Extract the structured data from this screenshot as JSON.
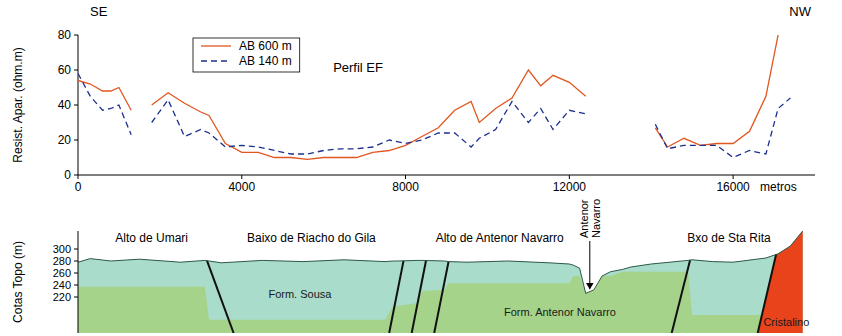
{
  "chart_data": [
    {
      "type": "line",
      "title": "Perfil EF",
      "left_label": "SE",
      "right_label": "NW",
      "ylabel": "Resist. Apar. (ohm.m)",
      "xlabel": "metros",
      "xlim": [
        0,
        18000
      ],
      "xticks": [
        0,
        4000,
        8000,
        12000,
        16000
      ],
      "ylim": [
        0,
        80
      ],
      "yticks": [
        0,
        20,
        40,
        60,
        80
      ],
      "legend": "upper left",
      "grid": false,
      "x": [
        0,
        300,
        600,
        800,
        1000,
        1300,
        1550,
        1800,
        2200,
        2600,
        3000,
        3200,
        3600,
        4000,
        4400,
        4800,
        5200,
        5600,
        6000,
        6400,
        6800,
        7200,
        7600,
        8000,
        8400,
        8800,
        9200,
        9600,
        9800,
        10200,
        10600,
        11000,
        11300,
        11600,
        12000,
        12400,
        13200,
        14100,
        14400,
        14800,
        15200,
        15600,
        16000,
        16400,
        16800,
        17100,
        17400
      ],
      "series": [
        {
          "name": "AB 600 m",
          "color": "#e2561f",
          "line_style": "solid",
          "values": [
            54,
            52,
            48,
            48,
            50,
            37,
            null,
            40,
            47,
            41,
            36,
            34,
            18,
            13,
            13,
            10,
            10,
            9,
            10,
            10,
            10,
            13,
            14,
            17,
            22,
            27,
            37,
            42,
            30,
            38,
            44,
            60,
            51,
            57,
            53,
            45,
            null,
            27,
            16,
            21,
            17,
            18,
            18,
            25,
            45,
            80,
            null
          ]
        },
        {
          "name": "AB 140 m",
          "color": "#1c2f8f",
          "line_style": "dashed",
          "values": [
            58,
            45,
            37,
            38,
            40,
            23,
            null,
            30,
            43,
            22,
            26,
            24,
            16,
            17,
            16,
            14,
            12,
            12,
            14,
            15,
            15,
            16,
            20,
            18,
            20,
            24,
            24,
            16,
            21,
            26,
            42,
            30,
            38,
            26,
            37,
            35,
            null,
            29,
            15,
            17,
            17,
            17,
            10,
            14,
            12,
            38,
            44
          ]
        }
      ]
    },
    {
      "type": "section",
      "ylabel": "Cotas Topo (m)",
      "xlim": [
        0,
        18000
      ],
      "ylim": [
        160,
        330
      ],
      "yticks": [
        220,
        240,
        260,
        280,
        300
      ],
      "tick_labels": "y",
      "x": [
        0,
        300,
        800,
        1500,
        2500,
        3100,
        3200,
        3500,
        4500,
        5500,
        6500,
        7500,
        7700,
        7800,
        8300,
        8400,
        8950,
        9050,
        9500,
        10500,
        11500,
        12000,
        12100,
        12250,
        12400,
        12600,
        12800,
        13000,
        13300,
        13500,
        14000,
        14900,
        15000,
        15500,
        16000,
        16800,
        17100,
        17400,
        17700
      ],
      "topography": [
        278,
        284,
        280,
        283,
        278,
        281,
        280,
        277,
        281,
        279,
        282,
        279,
        280,
        280,
        281,
        281,
        280,
        279,
        278,
        280,
        277,
        275,
        273,
        268,
        226,
        232,
        255,
        262,
        266,
        270,
        275,
        281,
        282,
        279,
        278,
        285,
        292,
        305,
        330
      ],
      "units": [
        {
          "name": "Form. Sousa",
          "color": "#a9dccb",
          "base": [
            237,
            237,
            237,
            237,
            237,
            237,
            182,
            182,
            182,
            182,
            182,
            182,
            205,
            205,
            210,
            230,
            232,
            243,
            243,
            243,
            243,
            243,
            255,
            255,
            255,
            255,
            255,
            255,
            262,
            262,
            262,
            262,
            190,
            190,
            190,
            190,
            190,
            190,
            190
          ],
          "label_x": 5420,
          "label_y": 218
        },
        {
          "name": "Form. Antenor Navarro",
          "color": "#a6d38a",
          "label_x": 11770,
          "label_y": 188
        },
        {
          "name": "Cristalino",
          "color": "#e8431b",
          "contact": [
            17050,
            16600
          ],
          "label_x": 17300,
          "label_y": 172
        }
      ],
      "faults": [
        {
          "x": [
            3150,
            3800
          ]
        },
        {
          "x": [
            7950,
            7600
          ]
        },
        {
          "x": [
            8500,
            8150
          ]
        },
        {
          "x": [
            9050,
            8700
          ]
        },
        {
          "x": [
            14950,
            14500
          ]
        }
      ],
      "places": [
        {
          "text": "Alto de Umari",
          "x": 1800,
          "y": 312
        },
        {
          "text": "Baixo de Riacho do Gila",
          "x": 5700,
          "y": 312
        },
        {
          "text": "Alto de Antenor Navarro",
          "x": 10300,
          "y": 312
        },
        {
          "text": "Bxo de Sta Rita",
          "x": 15900,
          "y": 312
        }
      ],
      "pointer": {
        "text": "Antenor Navarro",
        "x": 12500
      }
    }
  ]
}
